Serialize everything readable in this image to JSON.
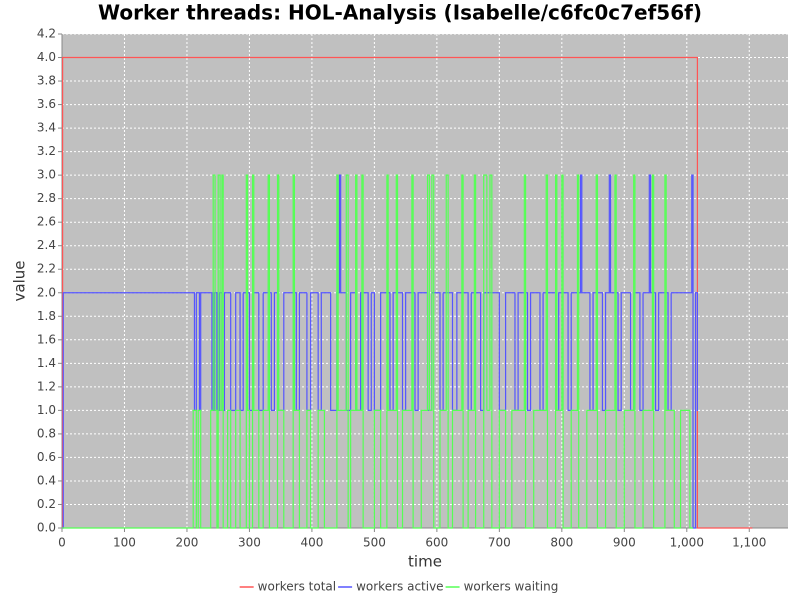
{
  "chart_data": {
    "type": "step",
    "title": "Worker threads: HOL-Analysis (Isabelle/c6fc0c7ef56f)",
    "xlabel": "time",
    "ylabel": "value",
    "xlim": [
      0,
      1162
    ],
    "ylim": [
      0,
      4.2
    ],
    "xticks": [
      0,
      100,
      200,
      300,
      400,
      500,
      600,
      700,
      800,
      900,
      {
        "value": 1000,
        "label": "1,000"
      },
      {
        "value": 1100,
        "label": "1,100"
      }
    ],
    "yticks": [
      {
        "value": 0,
        "label": "0.0"
      },
      0.2,
      0.4,
      0.6,
      0.8,
      {
        "value": 1,
        "label": "1.0"
      },
      1.2,
      1.4,
      1.6,
      1.8,
      {
        "value": 2,
        "label": "2.0"
      },
      2.2,
      2.4,
      2.6,
      2.8,
      {
        "value": 3,
        "label": "3.0"
      },
      3.2,
      3.4,
      3.6,
      3.8,
      {
        "value": 4,
        "label": "4.0"
      },
      4.2
    ],
    "grid": true,
    "legend": "bottom",
    "series": [
      {
        "name": "workers total",
        "color": "#ff5555",
        "x": [
          0,
          1,
          1017,
          1105
        ],
        "values": [
          0,
          4,
          0,
          0
        ]
      },
      {
        "name": "workers active",
        "color": "#5555ff",
        "x": [
          0,
          2,
          212,
          215,
          220,
          222,
          240,
          243,
          248,
          252,
          256,
          260,
          270,
          278,
          285,
          290,
          300,
          305,
          315,
          322,
          335,
          340,
          345,
          355,
          375,
          380,
          392,
          398,
          410,
          415,
          430,
          440,
          444,
          446,
          455,
          462,
          470,
          478,
          490,
          495,
          500,
          510,
          525,
          530,
          545,
          550,
          565,
          570,
          585,
          592,
          605,
          610,
          625,
          632,
          650,
          655,
          670,
          675,
          700,
          710,
          725,
          730,
          745,
          750,
          765,
          770,
          790,
          795,
          810,
          815,
          830,
          832,
          845,
          850,
          865,
          870,
          876,
          878,
          890,
          895,
          910,
          915,
          925,
          930,
          940,
          942,
          950,
          955,
          970,
          975,
          1008,
          1010,
          1014,
          1017,
          1018
        ],
        "values": [
          0,
          2,
          1,
          2,
          1,
          2,
          1,
          2,
          1,
          2,
          1,
          2,
          1,
          2,
          1,
          2,
          1,
          2,
          1,
          2,
          1,
          2,
          1,
          2,
          1,
          2,
          1,
          2,
          1,
          2,
          1,
          2,
          3,
          2,
          1,
          2,
          1,
          2,
          1,
          2,
          1,
          2,
          1,
          2,
          1,
          2,
          1,
          2,
          1,
          2,
          1,
          2,
          1,
          2,
          1,
          2,
          1,
          2,
          1,
          2,
          1,
          2,
          1,
          2,
          1,
          2,
          1,
          2,
          1,
          2,
          3,
          2,
          1,
          2,
          1,
          2,
          3,
          2,
          1,
          2,
          1,
          2,
          1,
          2,
          3,
          2,
          1,
          2,
          1,
          2,
          3,
          0,
          2,
          1,
          1
        ]
      },
      {
        "name": "workers waiting",
        "color": "#55ff55",
        "x": [
          0,
          210,
          215,
          218,
          222,
          238,
          242,
          245,
          248,
          250,
          253,
          256,
          258,
          265,
          270,
          278,
          285,
          295,
          297,
          300,
          305,
          307,
          315,
          322,
          330,
          332,
          345,
          347,
          355,
          370,
          372,
          380,
          392,
          398,
          410,
          420,
          440,
          442,
          455,
          458,
          462,
          470,
          472,
          480,
          482,
          500,
          510,
          520,
          522,
          535,
          537,
          545,
          560,
          562,
          575,
          585,
          588,
          592,
          595,
          605,
          615,
          618,
          625,
          640,
          642,
          650,
          660,
          662,
          675,
          680,
          685,
          688,
          700,
          710,
          720,
          740,
          742,
          755,
          775,
          777,
          790,
          792,
          800,
          802,
          815,
          825,
          827,
          840,
          855,
          857,
          870,
          885,
          887,
          900,
          915,
          917,
          930,
          945,
          947,
          965,
          967,
          980,
          990,
          1005,
          1010
        ],
        "values": [
          0,
          1,
          0,
          1,
          0,
          1,
          3,
          1,
          0,
          3,
          1,
          3,
          0,
          1,
          0,
          1,
          0,
          3,
          1,
          0,
          3,
          1,
          0,
          1,
          3,
          0,
          3,
          1,
          0,
          3,
          1,
          0,
          1,
          0,
          1,
          0,
          3,
          1,
          3,
          0,
          1,
          3,
          1,
          3,
          0,
          1,
          0,
          3,
          1,
          3,
          0,
          1,
          3,
          0,
          1,
          3,
          1,
          3,
          0,
          1,
          3,
          0,
          1,
          3,
          0,
          1,
          3,
          0,
          3,
          1,
          3,
          0,
          1,
          0,
          1,
          3,
          0,
          1,
          3,
          0,
          3,
          1,
          3,
          0,
          1,
          3,
          0,
          1,
          3,
          0,
          1,
          3,
          0,
          1,
          3,
          0,
          1,
          3,
          0,
          3,
          1,
          0,
          1,
          0,
          0
        ]
      }
    ]
  }
}
